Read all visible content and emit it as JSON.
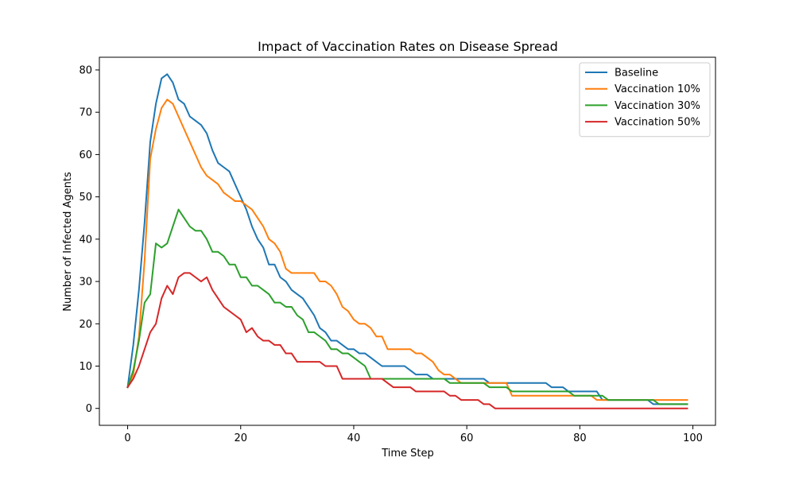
{
  "chart_data": {
    "type": "line",
    "title": "Impact of Vaccination Rates on Disease Spread",
    "xlabel": "Time Step",
    "ylabel": "Number of Infected Agents",
    "xlim": [
      -5,
      104
    ],
    "ylim": [
      -4,
      83
    ],
    "xticks": [
      0,
      20,
      40,
      60,
      80,
      100
    ],
    "yticks": [
      0,
      10,
      20,
      30,
      40,
      50,
      60,
      70,
      80
    ],
    "grid": false,
    "legend_position": "top-right",
    "series": [
      {
        "name": "Baseline",
        "color": "#1f77b4",
        "values": [
          5,
          15,
          28,
          44,
          63,
          72,
          78,
          79,
          77,
          73,
          72,
          69,
          68,
          67,
          65,
          61,
          58,
          57,
          56,
          53,
          50,
          47,
          43,
          40,
          38,
          34,
          34,
          31,
          30,
          28,
          27,
          26,
          24,
          22,
          19,
          18,
          16,
          16,
          15,
          14,
          14,
          13,
          13,
          12,
          11,
          10,
          10,
          10,
          10,
          10,
          9,
          8,
          8,
          8,
          7,
          7,
          7,
          7,
          7,
          7,
          7,
          7,
          7,
          7,
          6,
          6,
          6,
          6,
          6,
          6,
          6,
          6,
          6,
          6,
          6,
          5,
          5,
          5,
          4,
          4,
          4,
          4,
          4,
          4,
          2,
          2,
          2,
          2,
          2,
          2,
          2,
          2,
          2,
          1,
          1,
          1,
          1,
          1,
          1,
          1
        ]
      },
      {
        "name": "Vaccination 10%",
        "color": "#ff7f0e",
        "values": [
          5,
          8,
          17,
          35,
          59,
          66,
          71,
          73,
          72,
          69,
          66,
          63,
          60,
          57,
          55,
          54,
          53,
          51,
          50,
          49,
          49,
          48,
          47,
          45,
          43,
          40,
          39,
          37,
          33,
          32,
          32,
          32,
          32,
          32,
          30,
          30,
          29,
          27,
          24,
          23,
          21,
          20,
          20,
          19,
          17,
          17,
          14,
          14,
          14,
          14,
          14,
          13,
          13,
          12,
          11,
          9,
          8,
          8,
          7,
          6,
          6,
          6,
          6,
          6,
          6,
          6,
          6,
          6,
          3,
          3,
          3,
          3,
          3,
          3,
          3,
          3,
          3,
          3,
          3,
          3,
          3,
          3,
          3,
          2,
          2,
          2,
          2,
          2,
          2,
          2,
          2,
          2,
          2,
          2,
          2,
          2,
          2,
          2,
          2,
          2
        ]
      },
      {
        "name": "Vaccination 30%",
        "color": "#2ca02c",
        "values": [
          5,
          9,
          16,
          25,
          27,
          39,
          38,
          39,
          43,
          47,
          45,
          43,
          42,
          42,
          40,
          37,
          37,
          36,
          34,
          34,
          31,
          31,
          29,
          29,
          28,
          27,
          25,
          25,
          24,
          24,
          22,
          21,
          18,
          18,
          17,
          16,
          14,
          14,
          13,
          13,
          12,
          11,
          10,
          7,
          7,
          7,
          7,
          7,
          7,
          7,
          7,
          7,
          7,
          7,
          7,
          7,
          7,
          6,
          6,
          6,
          6,
          6,
          6,
          6,
          5,
          5,
          5,
          5,
          4,
          4,
          4,
          4,
          4,
          4,
          4,
          4,
          4,
          4,
          4,
          3,
          3,
          3,
          3,
          3,
          3,
          2,
          2,
          2,
          2,
          2,
          2,
          2,
          2,
          2,
          1,
          1,
          1,
          1,
          1,
          1
        ]
      },
      {
        "name": "Vaccination 50%",
        "color": "#d62728",
        "values": [
          5,
          7,
          10,
          14,
          18,
          20,
          26,
          29,
          27,
          31,
          32,
          32,
          31,
          30,
          31,
          28,
          26,
          24,
          23,
          22,
          21,
          18,
          19,
          17,
          16,
          16,
          15,
          15,
          13,
          13,
          11,
          11,
          11,
          11,
          11,
          10,
          10,
          10,
          7,
          7,
          7,
          7,
          7,
          7,
          7,
          7,
          6,
          5,
          5,
          5,
          5,
          4,
          4,
          4,
          4,
          4,
          4,
          3,
          3,
          2,
          2,
          2,
          2,
          1,
          1,
          0,
          0,
          0,
          0,
          0,
          0,
          0,
          0,
          0,
          0,
          0,
          0,
          0,
          0,
          0,
          0,
          0,
          0,
          0,
          0,
          0,
          0,
          0,
          0,
          0,
          0,
          0,
          0,
          0,
          0,
          0,
          0,
          0,
          0,
          0
        ]
      }
    ]
  }
}
